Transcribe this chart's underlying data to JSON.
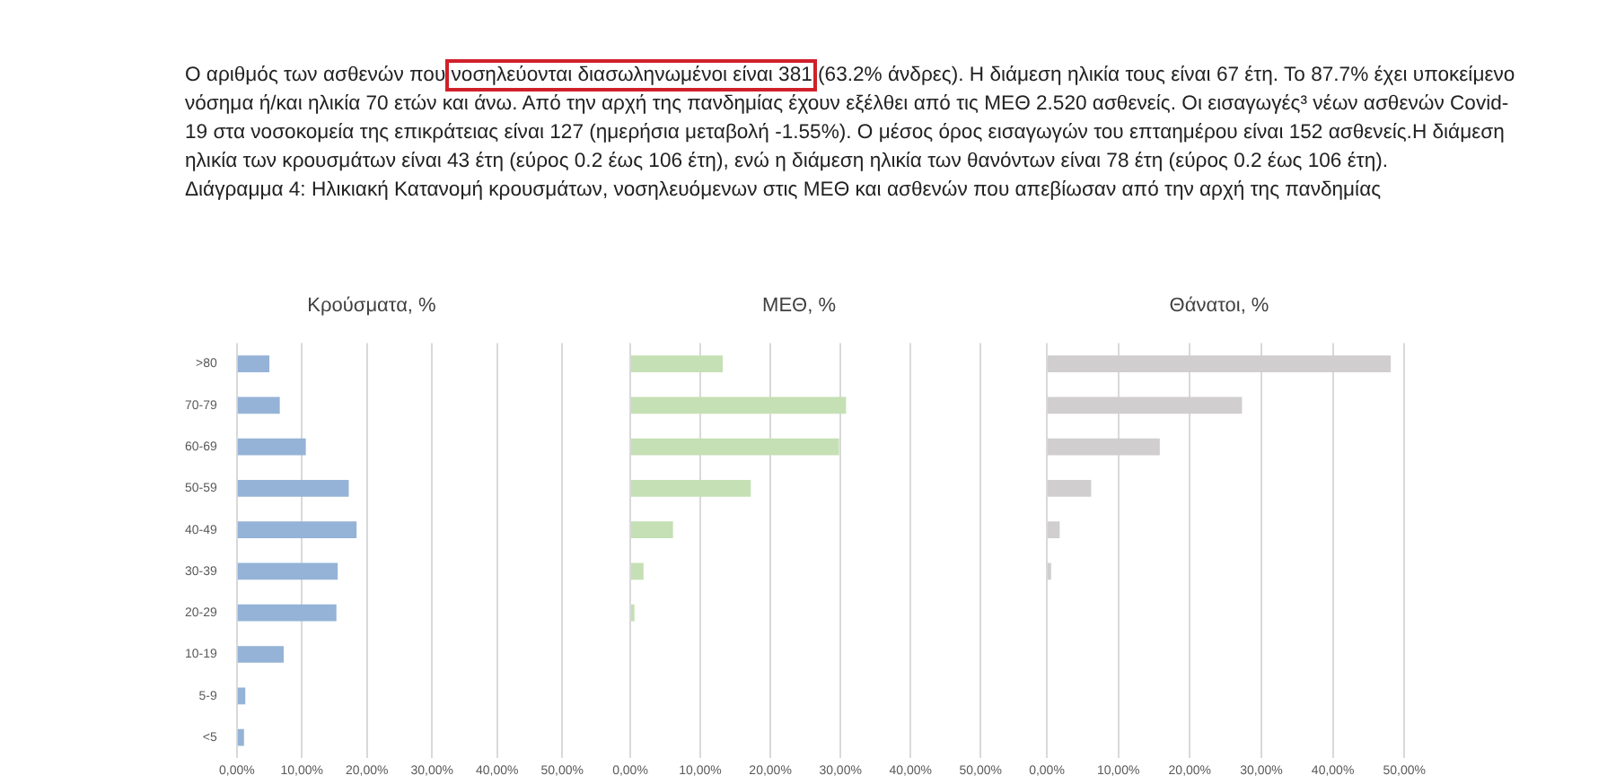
{
  "chart_data": [
    {
      "type": "bar",
      "orientation": "horizontal",
      "title": "Κρούσματα, %",
      "annotations": [
        "Ο αριθμός των ασθενών που ",
        "νοσηλεύονται διασωληνωμένοι είναι 381",
        " (63.2% άνδρες).  Η διάμεση ηλικία τους είναι 67 έτη.  Το 87.7% έχει υποκείμενο νόσημα ή/και ηλικία 70 ετών και άνω. Από την αρχή της πανδημίας έχουν εξέλθει από τις ΜΕΘ 2.520 ασθενείς. Οι εισαγωγές³ νέων ασθενών Covid-19 στα νοσοκομεία της επικράτειας είναι 127 (ημερήσια μεταβολή -1.55%). Ο μέσος όρος εισαγωγών του επταημέρου είναι 152 ασθενείς.Η διάμεση ηλικία των κρουσμάτων είναι 43 έτη (εύρος 0.2 έως 106 έτη), ενώ η διάμεση ηλικία των θανόντων είναι 78 έτη (εύρος 0.2 έως 106 έτη).",
        "Διάγραμμα 4: Ηλικιακή Κατανομή κρουσμάτων, νοσηλευόμενων στις ΜΕΘ και ασθενών που απεβίωσαν από την αρχή της πανδημίας"
      ],
      "categories": [
        ">80",
        "70-79",
        "60-69",
        "50-59",
        "40-49",
        "30-39",
        "20-29",
        "10-19",
        "5-9",
        "<5"
      ],
      "values": [
        5.0,
        6.6,
        10.6,
        17.2,
        18.4,
        15.5,
        15.3,
        7.2,
        1.3,
        1.1
      ],
      "color": "#95b3d7",
      "xlim": [
        0,
        50
      ],
      "xticks": [
        {
          "value": 0,
          "label": "0,00%"
        },
        {
          "value": 10,
          "label": "10,00%"
        },
        {
          "value": 20,
          "label": "20,00%"
        },
        {
          "value": 30,
          "label": "30,00%"
        },
        {
          "value": 40,
          "label": "40,00%"
        },
        {
          "value": 50,
          "label": "50,00%"
        }
      ],
      "grid": "x"
    },
    {
      "type": "bar",
      "orientation": "horizontal",
      "title": "ΜΕΘ, %",
      "tick_labels": "x",
      "categories": [
        null,
        null,
        null,
        null,
        null,
        null,
        null,
        null,
        null,
        null
      ],
      "values": [
        13.2,
        30.8,
        29.8,
        17.2,
        6.1,
        1.9,
        0.6,
        0,
        0,
        0
      ],
      "color": "#c5e0b4",
      "xlim": [
        0,
        50
      ],
      "xticks": [
        {
          "value": 0,
          "label": "0,00%"
        },
        {
          "value": 10,
          "label": "10,00%"
        },
        {
          "value": 20,
          "label": "20,00%"
        },
        {
          "value": 30,
          "label": "30,00%"
        },
        {
          "value": 40,
          "label": "40,00%"
        },
        {
          "value": 50,
          "label": "50,00%"
        }
      ],
      "grid": "x"
    },
    {
      "type": "bar",
      "orientation": "horizontal",
      "title": "Θάνατοι, %",
      "tick_labels": "x",
      "categories": [
        null,
        null,
        null,
        null,
        null,
        null,
        null,
        null,
        null,
        null
      ],
      "values": [
        48.1,
        27.3,
        15.8,
        6.2,
        1.8,
        0.6,
        0,
        0,
        0,
        0
      ],
      "color": "#d0cece",
      "xlim": [
        0,
        50
      ],
      "xticks": [
        {
          "value": 0,
          "label": "0,00%"
        },
        {
          "value": 10,
          "label": "10,00%"
        },
        {
          "value": 20,
          "label": "20,00%"
        },
        {
          "value": 30,
          "label": "30,00%"
        },
        {
          "value": 40,
          "label": "40,00%"
        },
        {
          "value": 50,
          "label": "50,00%"
        }
      ],
      "grid": "x"
    }
  ]
}
